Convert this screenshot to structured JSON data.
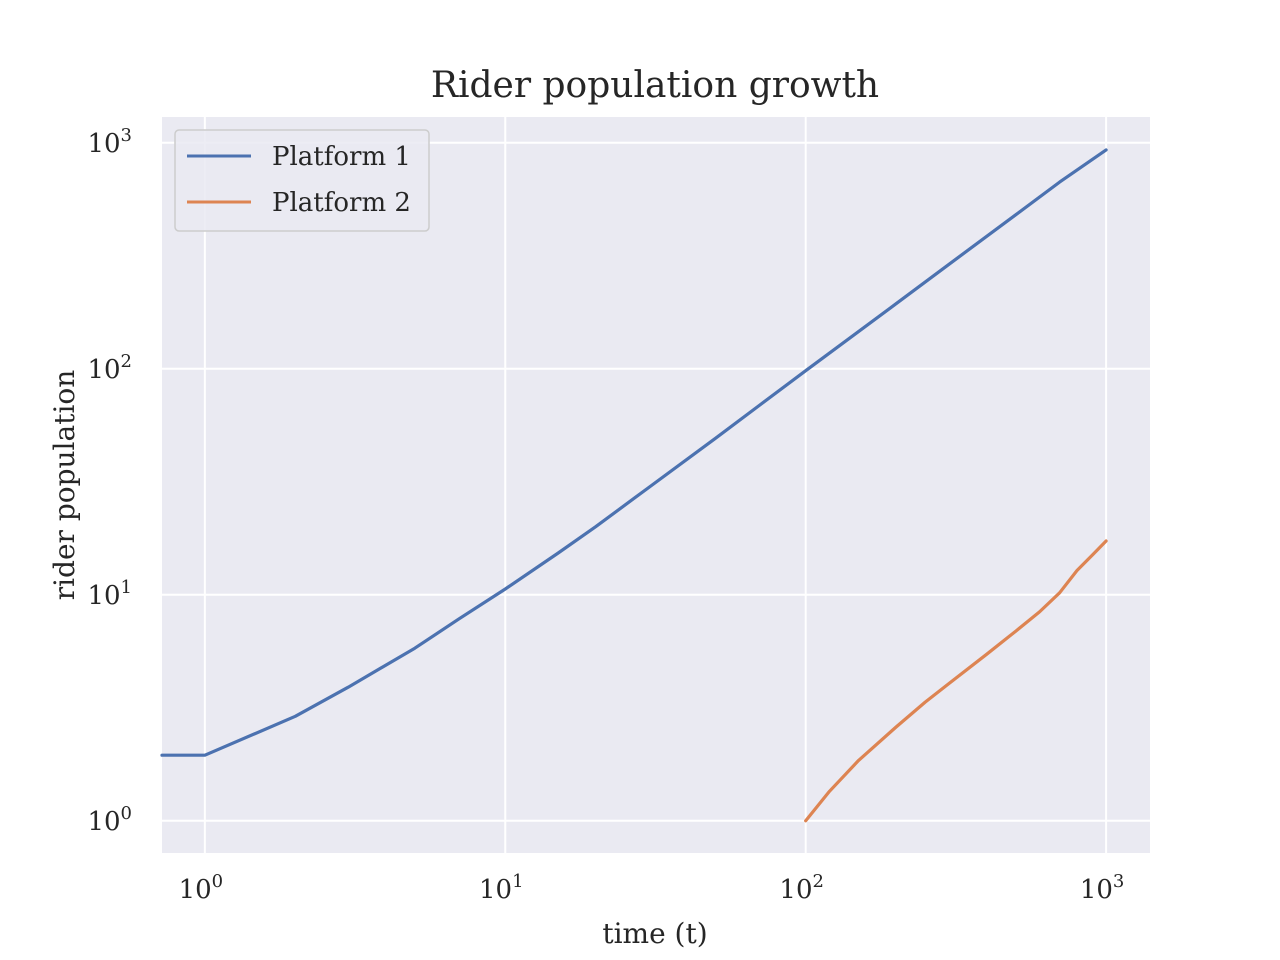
{
  "chart_data": {
    "type": "line",
    "title": "Rider population growth",
    "xlabel": "time (t)",
    "ylabel": "rider population",
    "xscale": "log",
    "yscale": "log",
    "xlim": [
      0.72,
      1400
    ],
    "ylim": [
      0.72,
      1300
    ],
    "grid": true,
    "legend_position": "top-left",
    "x_ticks": [
      {
        "base": "10",
        "exp": "0",
        "value": 1
      },
      {
        "base": "10",
        "exp": "1",
        "value": 10
      },
      {
        "base": "10",
        "exp": "2",
        "value": 100
      },
      {
        "base": "10",
        "exp": "3",
        "value": 1000
      }
    ],
    "y_ticks": [
      {
        "base": "10",
        "exp": "0",
        "value": 1
      },
      {
        "base": "10",
        "exp": "1",
        "value": 10
      },
      {
        "base": "10",
        "exp": "2",
        "value": 100
      },
      {
        "base": "10",
        "exp": "3",
        "value": 1000
      }
    ],
    "series": [
      {
        "name": "Platform 1",
        "color": "#4c72b0",
        "x": [
          0.72,
          1,
          2,
          3,
          5,
          7,
          10,
          15,
          20,
          30,
          50,
          70,
          100,
          200,
          300,
          500,
          700,
          1000
        ],
        "y": [
          1.95,
          1.95,
          2.9,
          3.9,
          5.8,
          7.8,
          10.6,
          15.3,
          20,
          29.8,
          49.2,
          68.8,
          98,
          194,
          290,
          480,
          670,
          930
        ]
      },
      {
        "name": "Platform 2",
        "color": "#dd8452",
        "x": [
          100,
          120,
          150,
          200,
          250,
          300,
          400,
          500,
          600,
          700,
          800,
          900,
          1000
        ],
        "y": [
          1.0,
          1.35,
          1.85,
          2.6,
          3.35,
          4.05,
          5.45,
          6.9,
          8.4,
          10.2,
          12.8,
          15.0,
          17.3
        ]
      }
    ]
  }
}
